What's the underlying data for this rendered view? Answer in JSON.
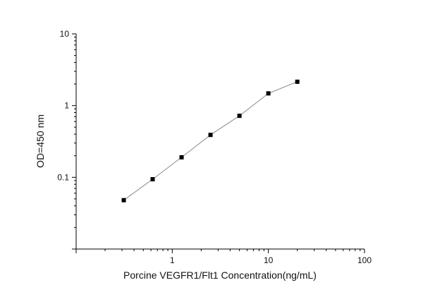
{
  "chart_data": {
    "type": "line",
    "title": "",
    "xlabel": "Porcine VEGFR1/Flt1 Concentration(ng/mL)",
    "ylabel": "OD=450 nm",
    "x_scale": "log",
    "y_scale": "log",
    "xlim": [
      0.1,
      100
    ],
    "ylim": [
      0.01,
      10
    ],
    "x_ticks": [
      1,
      10,
      100
    ],
    "x_tick_labels": [
      "1",
      "10",
      "100"
    ],
    "y_ticks": [
      0.1,
      1,
      10
    ],
    "y_tick_labels": [
      "0.1",
      "1",
      "10"
    ],
    "grid": false,
    "legend": false,
    "marker": "square",
    "colors": {
      "line": "#8a8a8a",
      "marker": "#000000",
      "axis": "#000000"
    },
    "series": [
      {
        "x": [
          0.313,
          0.625,
          1.25,
          2.5,
          5,
          10,
          20
        ],
        "y": [
          0.048,
          0.094,
          0.19,
          0.39,
          0.72,
          1.48,
          2.15
        ]
      }
    ]
  }
}
